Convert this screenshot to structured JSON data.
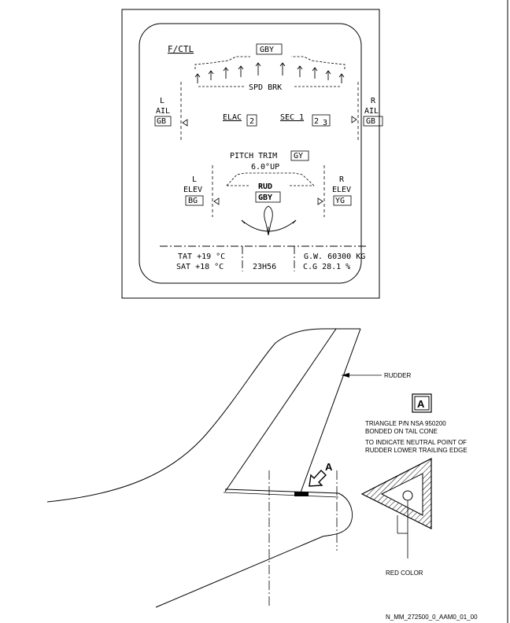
{
  "ecam": {
    "title": "F/CTL",
    "hyd_top": "GBY",
    "spd_brk": "SPD BRK",
    "left_ail": [
      "L",
      "AIL",
      "GB"
    ],
    "right_ail": [
      "R",
      "AIL",
      "GB"
    ],
    "elac": "ELAC",
    "elac_num": "2",
    "sec": "SEC 1",
    "sec_num": "2",
    "sec_num2": "3",
    "pitch_trim": "PITCH TRIM",
    "pitch_trim_hyd": "GY",
    "pitch_trim_val": "6.0°UP",
    "left_elev": [
      "L",
      "ELEV",
      "BG"
    ],
    "right_elev": [
      "R",
      "ELEV",
      "YG"
    ],
    "rud": "RUD",
    "rud_hyd": "GBY",
    "tat": "TAT +19 °C",
    "sat": "SAT +18 °C",
    "time": "23H56",
    "gw": "G.W. 60300   KG",
    "cg": "C.G  28.1  %"
  },
  "diagram": {
    "rudder_label": "RUDDER",
    "view_letter": "A",
    "arrow_letter": "A",
    "note_lines": [
      "TRIANGLE P/N NSA 950200",
      "BONDED ON TAIL CONE",
      "TO INDICATE NEUTRAL POINT OF",
      "RUDDER LOWER TRAILING EDGE"
    ],
    "red_color_label": "RED COLOR",
    "ref_code": "N_MM_272500_0_AAM0_01_00"
  }
}
